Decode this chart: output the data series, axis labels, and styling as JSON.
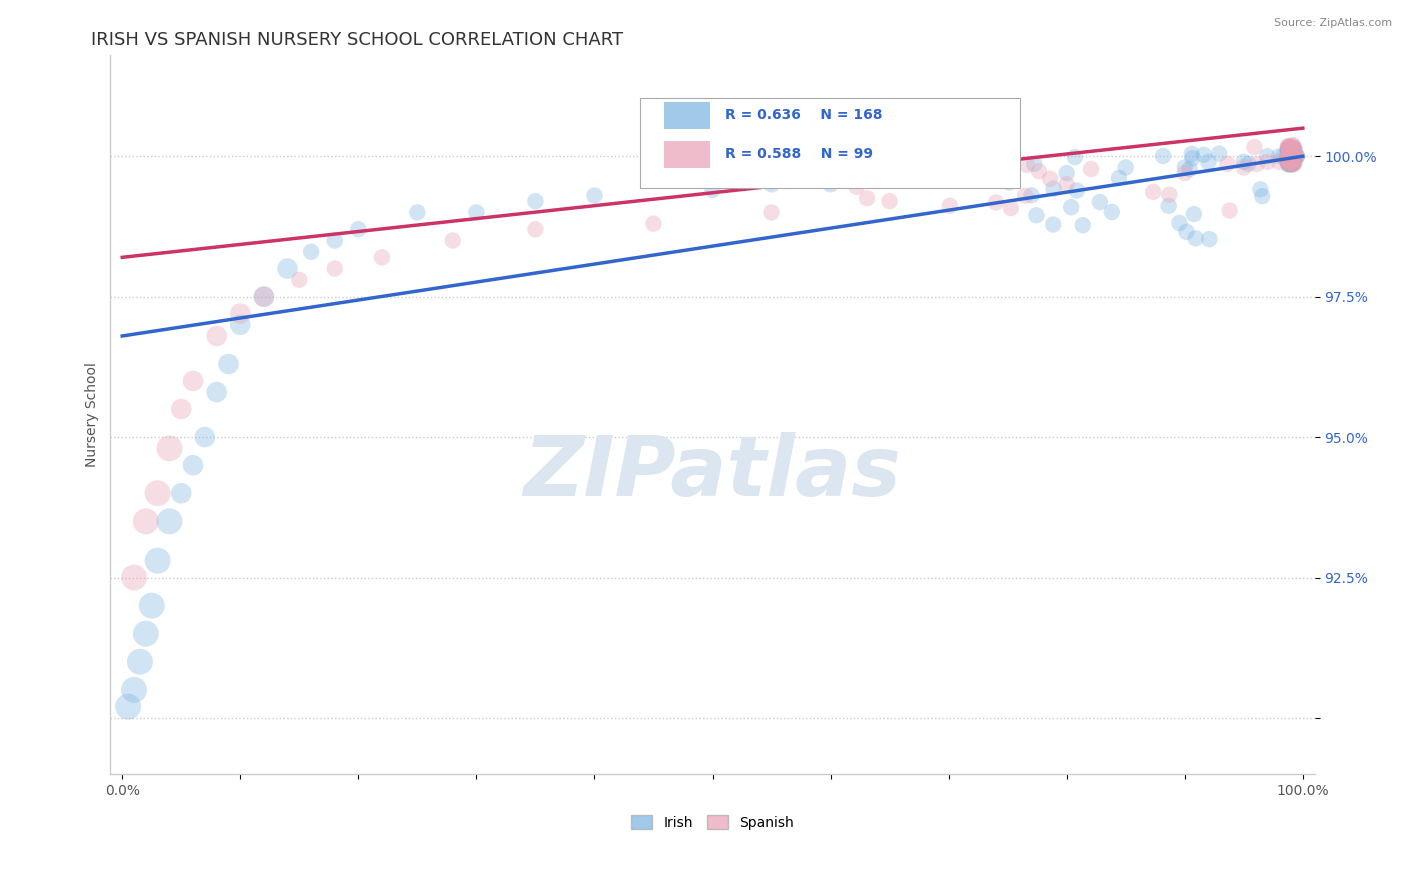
{
  "title": "IRISH VS SPANISH NURSERY SCHOOL CORRELATION CHART",
  "source_text": "Source: ZipAtlas.com",
  "ylabel": "Nursery School",
  "legend_irish": "Irish",
  "legend_spanish": "Spanish",
  "irish_R": "R = 0.636",
  "irish_N": "N = 168",
  "spanish_R": "R = 0.588",
  "spanish_N": "N = 99",
  "xlim": [
    -1,
    101
  ],
  "ylim": [
    89.0,
    101.8
  ],
  "yticks": [
    90.0,
    92.5,
    95.0,
    97.5,
    100.0
  ],
  "ytick_labels": [
    "",
    "92.5%",
    "95.0%",
    "97.5%",
    "100.0%"
  ],
  "xtick_positions": [
    0,
    10,
    20,
    30,
    40,
    50,
    60,
    70,
    80,
    90,
    100
  ],
  "xtick_labels": [
    "0.0%",
    "",
    "",
    "",
    "",
    "",
    "",
    "",
    "",
    "",
    "100.0%"
  ],
  "irish_color": "#7ab3e0",
  "spanish_color": "#e8a0b4",
  "irish_line_color": "#3366cc",
  "spanish_line_color": "#cc3366",
  "background_color": "#ffffff",
  "grid_color": "#cccccc",
  "title_color": "#333333",
  "watermark_color": "#dce6f0",
  "irish_trend_x0": 0,
  "irish_trend_x1": 100,
  "irish_trend_y0": 96.8,
  "irish_trend_y1": 100.0,
  "spanish_trend_x0": 0,
  "spanish_trend_x1": 100,
  "spanish_trend_y0": 98.2,
  "spanish_trend_y1": 100.5,
  "marker_size_base": 200,
  "marker_alpha": 0.35,
  "title_fontsize": 13,
  "label_fontsize": 10,
  "tick_fontsize": 10,
  "legend_fontsize": 10,
  "seed_irish": 42,
  "seed_spanish": 77
}
